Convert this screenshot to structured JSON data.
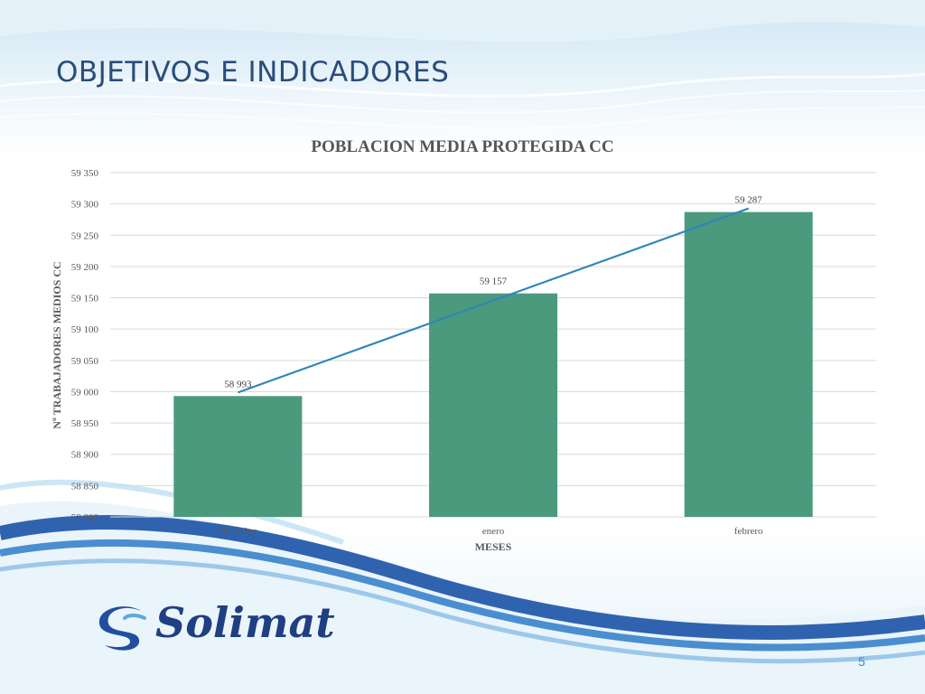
{
  "slide": {
    "title": "OBJETIVOS E INDICADORES",
    "page_number": "5",
    "logo_text": "Solimat"
  },
  "colors": {
    "bar": "#4b9a7e",
    "trendline": "#2e86b8",
    "title": "#2a4d7a",
    "brand": "#1f3f82"
  },
  "chart_data": {
    "type": "bar",
    "title": "POBLACION MEDIA PROTEGIDA CC",
    "xlabel": "MESES",
    "ylabel": "Nº TRABAJADORES MEDIOS CC",
    "categories": [
      "diciembre",
      "enero",
      "febrero"
    ],
    "series": [
      {
        "values": [
          58993,
          59157,
          59287
        ]
      }
    ],
    "data_labels": [
      "58 993",
      "59 157",
      "59 287"
    ],
    "ylim": [
      58800,
      59350
    ],
    "yticks": [
      58800,
      58850,
      58900,
      58950,
      59000,
      59050,
      59100,
      59150,
      59200,
      59250,
      59300,
      59350
    ],
    "ytick_labels": [
      "58 800",
      "58 850",
      "58 900",
      "58 950",
      "59 000",
      "59 050",
      "59 100",
      "59 150",
      "59 200",
      "59 250",
      "59 300",
      "59 350"
    ],
    "trendline": {
      "type": "linear"
    },
    "grid": true,
    "legend": "none"
  }
}
